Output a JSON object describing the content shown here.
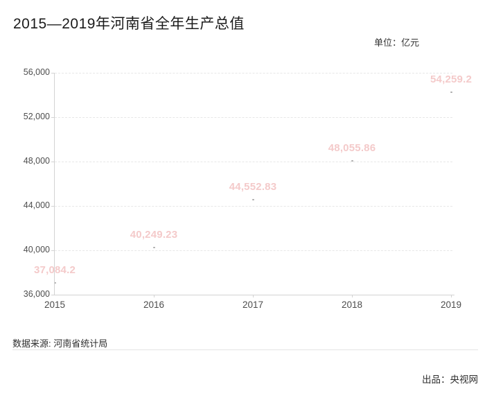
{
  "title": "2015—2019年河南省全年生产总值",
  "unit_label": "单位：亿元",
  "footer": {
    "source": "数据来源: 河南省统计局",
    "producer": "出品：央视网"
  },
  "colors": {
    "value_label_pink": "#f4caca",
    "axis_line": "#d2d2d2",
    "gridline": "#e7e7e7",
    "tick_text": "#4d4d4d",
    "point_marker": "#ababab"
  },
  "chart_data": {
    "type": "line",
    "title": "2015—2019年河南省全年生产总值",
    "unit": "亿元",
    "categories": [
      "2015",
      "2016",
      "2017",
      "2018",
      "2019"
    ],
    "series": [
      {
        "name": "全年生产总值",
        "values": [
          37084.2,
          40249.23,
          44552.83,
          48055.86,
          54259.2
        ]
      }
    ],
    "value_labels": [
      "37,084.2",
      "40,249.23",
      "44,552.83",
      "48,055.86",
      "54,259.2"
    ],
    "ylim": [
      36000,
      56000
    ],
    "yticks": [
      36000,
      40000,
      44000,
      48000,
      52000,
      56000
    ],
    "ytick_labels": [
      "36,000",
      "40,000",
      "44,000",
      "48,000",
      "52,000",
      "56,000"
    ],
    "grid": true,
    "legend": false
  }
}
